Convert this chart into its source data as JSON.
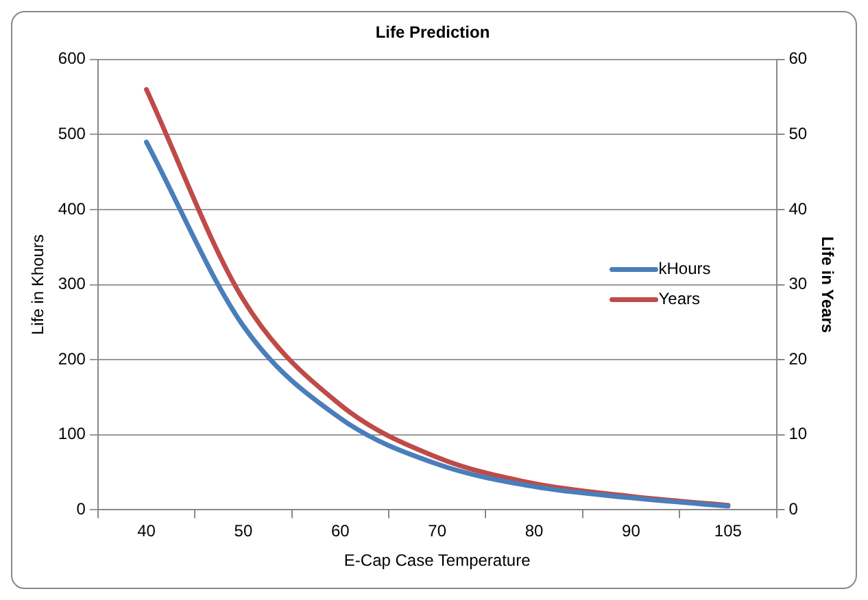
{
  "chart_data": {
    "type": "line",
    "title": "Life Prediction",
    "xlabel": "E-Cap Case Temperature",
    "ylabel": "Life in Khours",
    "y2label": "Life in Years",
    "categories": [
      "40",
      "50",
      "60",
      "70",
      "80",
      "90",
      "105"
    ],
    "series": [
      {
        "name": "kHours",
        "color": "#4a7ebb",
        "values": [
          490,
          245,
          122,
          61,
          31,
          16,
          5
        ]
      },
      {
        "name": "Years",
        "color": "#be4b48",
        "axis": "y2",
        "values": [
          56,
          28,
          14,
          7,
          3.5,
          1.8,
          0.6
        ]
      }
    ],
    "ylim": [
      0,
      600
    ],
    "yticks": [
      0,
      100,
      200,
      300,
      400,
      500,
      600
    ],
    "y2lim": [
      0,
      60
    ],
    "y2ticks": [
      0,
      10,
      20,
      30,
      40,
      50,
      60
    ],
    "grid": "y",
    "legend": "right",
    "marker": "none",
    "line_style": "solid"
  }
}
